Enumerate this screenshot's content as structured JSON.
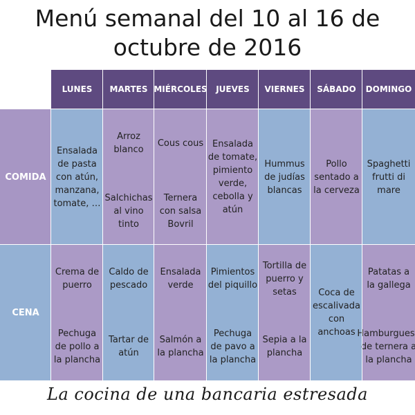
{
  "title_line1": "Menú semanal del 10 al 16 de",
  "title_line2": "octubre de 2016",
  "days": [
    "LUNES",
    "MARTES",
    "MIÉRCOLES",
    "JUEVES",
    "VIERNES",
    "SÁBADO",
    "DOMINGO"
  ],
  "rows": {
    "comida_label": "COMIDA",
    "cena_label": "CENA"
  },
  "comida": {
    "lunes": "Ensalada de pasta con atún, manzana, tomate, …",
    "martes_1": "Arroz blanco",
    "martes_2": "Salchichas al vino tinto",
    "miercoles_1": "Cous cous",
    "miercoles_2": "Ternera con salsa Bovril",
    "jueves": "Ensalada de tomate, pimiento verde, cebolla y atún",
    "viernes": "Hummus de judías blancas",
    "sabado": "Pollo sentado a la cerveza",
    "domingo": "Spaghetti frutti di mare"
  },
  "cena": {
    "lunes_1": "Crema de puerro",
    "lunes_2": "Pechuga de pollo a la plancha",
    "martes_1": "Caldo de pescado",
    "martes_2": "Tartar de atún",
    "miercoles_1": "Ensalada verde",
    "miercoles_2": "Salmón a la plancha",
    "jueves_1": "Pimientos del piquillo",
    "jueves_2": "Pechuga de pavo a la plancha",
    "viernes_1": "Tortilla de puerro y setas",
    "viernes_2": "Sepia a la plancha",
    "sabado": "Coca de escalivada con anchoas",
    "domingo_1": "Patatas a la gallega",
    "domingo_2": "Hamburguesa de ternera a la plancha"
  },
  "footer": "La cocina de una bancaria estresada",
  "colors": {
    "header": "#5e4a80",
    "blue": "#94b1d4",
    "lavender": "#ab9ac6"
  }
}
